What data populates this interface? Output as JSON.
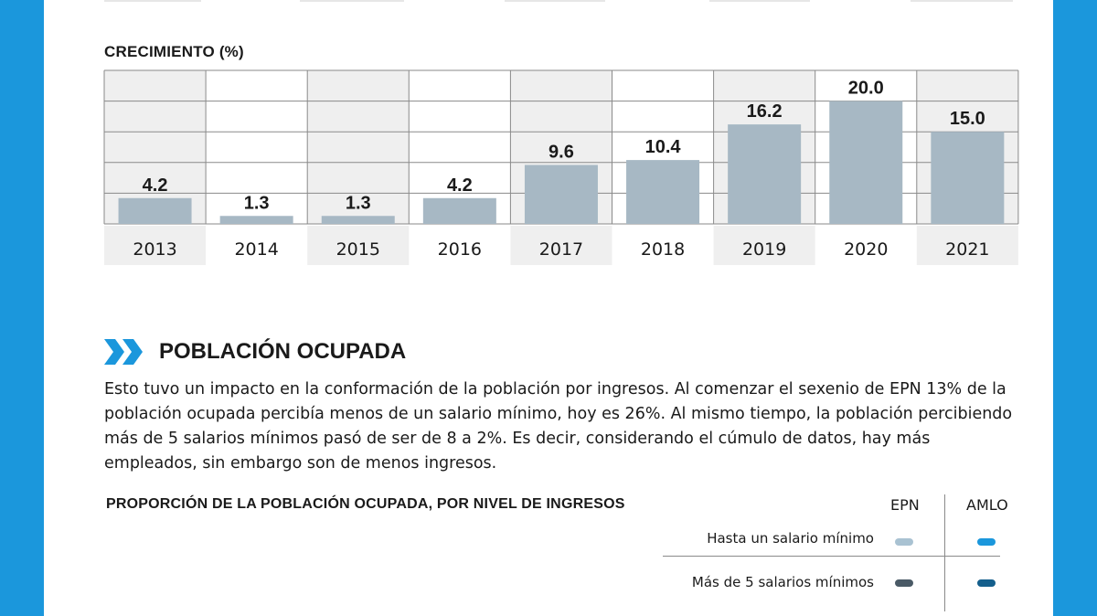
{
  "chart_data": {
    "type": "bar",
    "title": "CRECIMIENTO (%)",
    "categories": [
      "2013",
      "2014",
      "2015",
      "2016",
      "2017",
      "2018",
      "2019",
      "2020",
      "2021"
    ],
    "values": [
      4.2,
      1.3,
      1.3,
      4.2,
      9.6,
      10.4,
      16.2,
      20.0,
      15.0
    ],
    "value_labels": [
      "4.2",
      "1.3",
      "1.3",
      "4.2",
      "9.6",
      "10.4",
      "16.2",
      "20.0",
      "15.0"
    ],
    "ylim": [
      0,
      25
    ],
    "grid": true,
    "bar_color": "#a7b8c4",
    "shade_color": "#efefef"
  },
  "section": {
    "title": "POBLACIÓN OCUPADA",
    "body": "Esto tuvo un impacto en la conformación de la población por ingresos. Al comenzar el sexenio de EPN 13% de la población ocupada percibía menos de un salario mínimo, hoy es 26%. Al mismo tiempo, la población percibiendo más de 5 salarios mínimos pasó de ser de 8 a 2%.  Es decir, considerando el cúmulo de datos, hay más empleados, sin embargo son de menos ingresos."
  },
  "table": {
    "title": "PROPORCIÓN DE LA POBLACIÓN OCUPADA, POR NIVEL DE INGRESOS",
    "columns": [
      "EPN",
      "AMLO"
    ],
    "rows": [
      {
        "label": "Hasta un salario mínimo",
        "colors": [
          "#a9c2d2",
          "#1b97dc"
        ]
      },
      {
        "label": "Más de 5 salarios mínimos",
        "colors": [
          "#4a5a66",
          "#145f8c"
        ]
      }
    ]
  },
  "colors": {
    "frame": "#1b97dc",
    "accent": "#1b97dc",
    "text": "#1a1a1a"
  }
}
